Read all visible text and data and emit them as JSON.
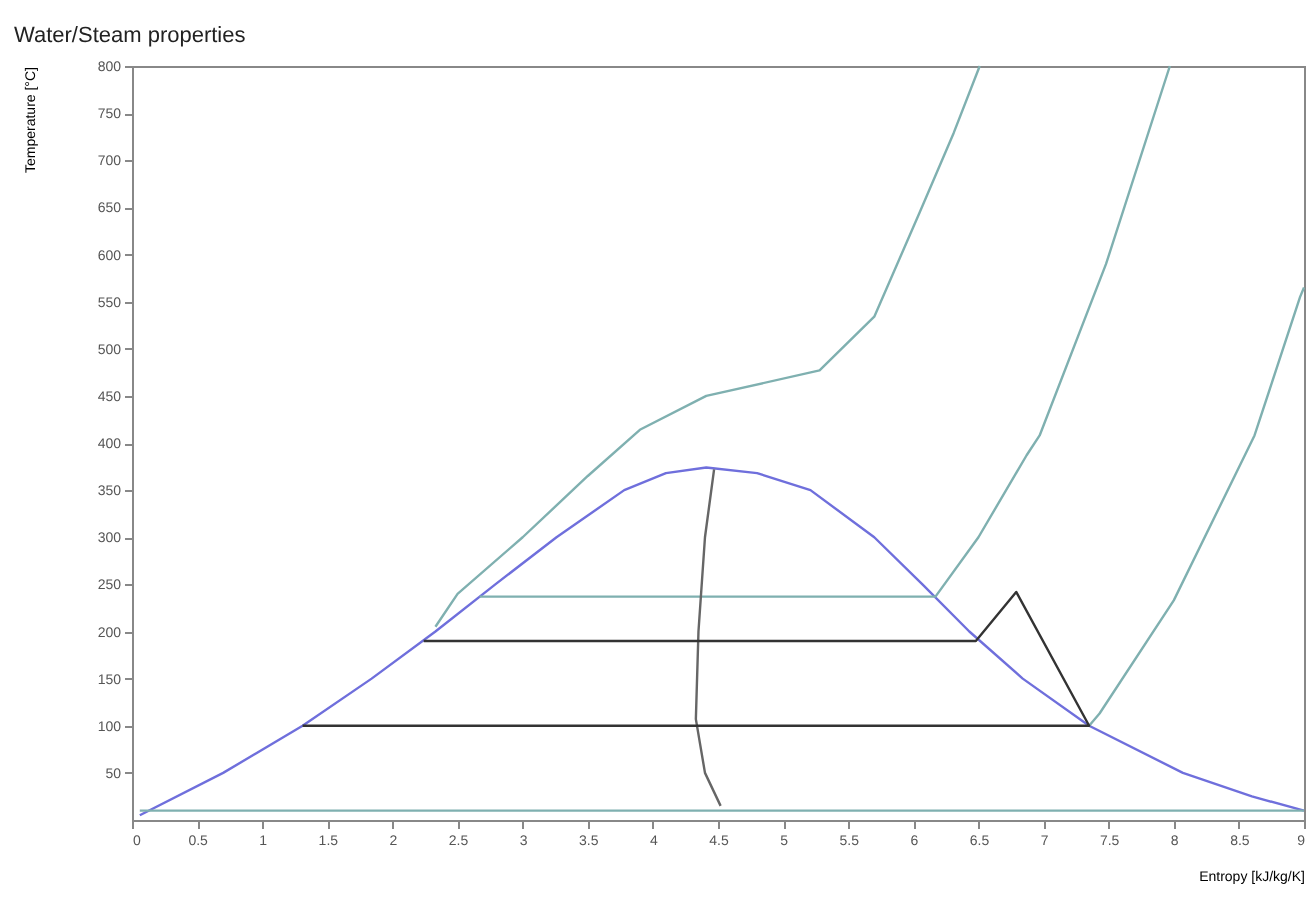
{
  "chart_data": {
    "type": "line",
    "title": "Water/Steam properties",
    "xlabel": "Entropy [kJ/kg/K]",
    "ylabel": "Temperature [°C]",
    "xlim": [
      0,
      9
    ],
    "ylim": [
      0,
      800
    ],
    "xticks": [
      0,
      0.5,
      1,
      1.5,
      2,
      2.5,
      3,
      3.5,
      4,
      4.5,
      5,
      5.5,
      6,
      6.5,
      7,
      7.5,
      8,
      8.5,
      9
    ],
    "yticks": [
      50,
      100,
      150,
      200,
      250,
      300,
      350,
      400,
      450,
      500,
      550,
      600,
      650,
      700,
      750,
      800
    ],
    "grid": false,
    "marker": "none",
    "line_style": "solid",
    "series": [
      {
        "color": "#6f6fdc",
        "x": [
          0.06,
          0.7,
          1.31,
          1.84,
          2.33,
          2.79,
          3.26,
          3.78,
          4.1,
          4.41,
          4.8,
          5.21,
          5.7,
          6.07,
          6.43,
          6.84,
          7.35,
          8.07,
          8.6,
          9.0
        ],
        "values": [
          5,
          50,
          100,
          150,
          200,
          250,
          300,
          350,
          368,
          374,
          368,
          350,
          300,
          250,
          200,
          150,
          100,
          50,
          25,
          10
        ]
      },
      {
        "color": "#7fb0b0",
        "x": [
          2.33,
          2.5,
          3.0,
          3.5,
          3.9,
          4.41,
          5.28,
          5.7,
          6.05,
          6.31,
          6.51
        ],
        "values": [
          205,
          240,
          300,
          365,
          414,
          450,
          477,
          534,
          645,
          729,
          800
        ]
      },
      {
        "color": "#7fb0b0",
        "x": [
          2.67,
          6.17,
          6.5,
          6.87,
          6.97,
          7.48,
          7.97
        ],
        "values": [
          237,
          237,
          300,
          387,
          408,
          590,
          800
        ]
      },
      {
        "color": "#7fb0b0",
        "x": [
          7.35,
          7.43,
          8.0,
          8.62,
          8.97,
          9.0
        ],
        "values": [
          100,
          113,
          233,
          408,
          555,
          565
        ]
      },
      {
        "color": "#7fb0b0",
        "x": [
          0.06,
          9.0
        ],
        "values": [
          10,
          10
        ]
      },
      {
        "color": "#666666",
        "x": [
          4.47,
          4.4,
          4.35,
          4.33,
          4.4,
          4.52
        ],
        "values": [
          372,
          300,
          200,
          107,
          50,
          15
        ]
      },
      {
        "color": "#333333",
        "x": [
          2.24,
          6.48,
          6.79,
          7.35,
          1.31
        ],
        "values": [
          190,
          190,
          242,
          100,
          100
        ]
      }
    ]
  }
}
